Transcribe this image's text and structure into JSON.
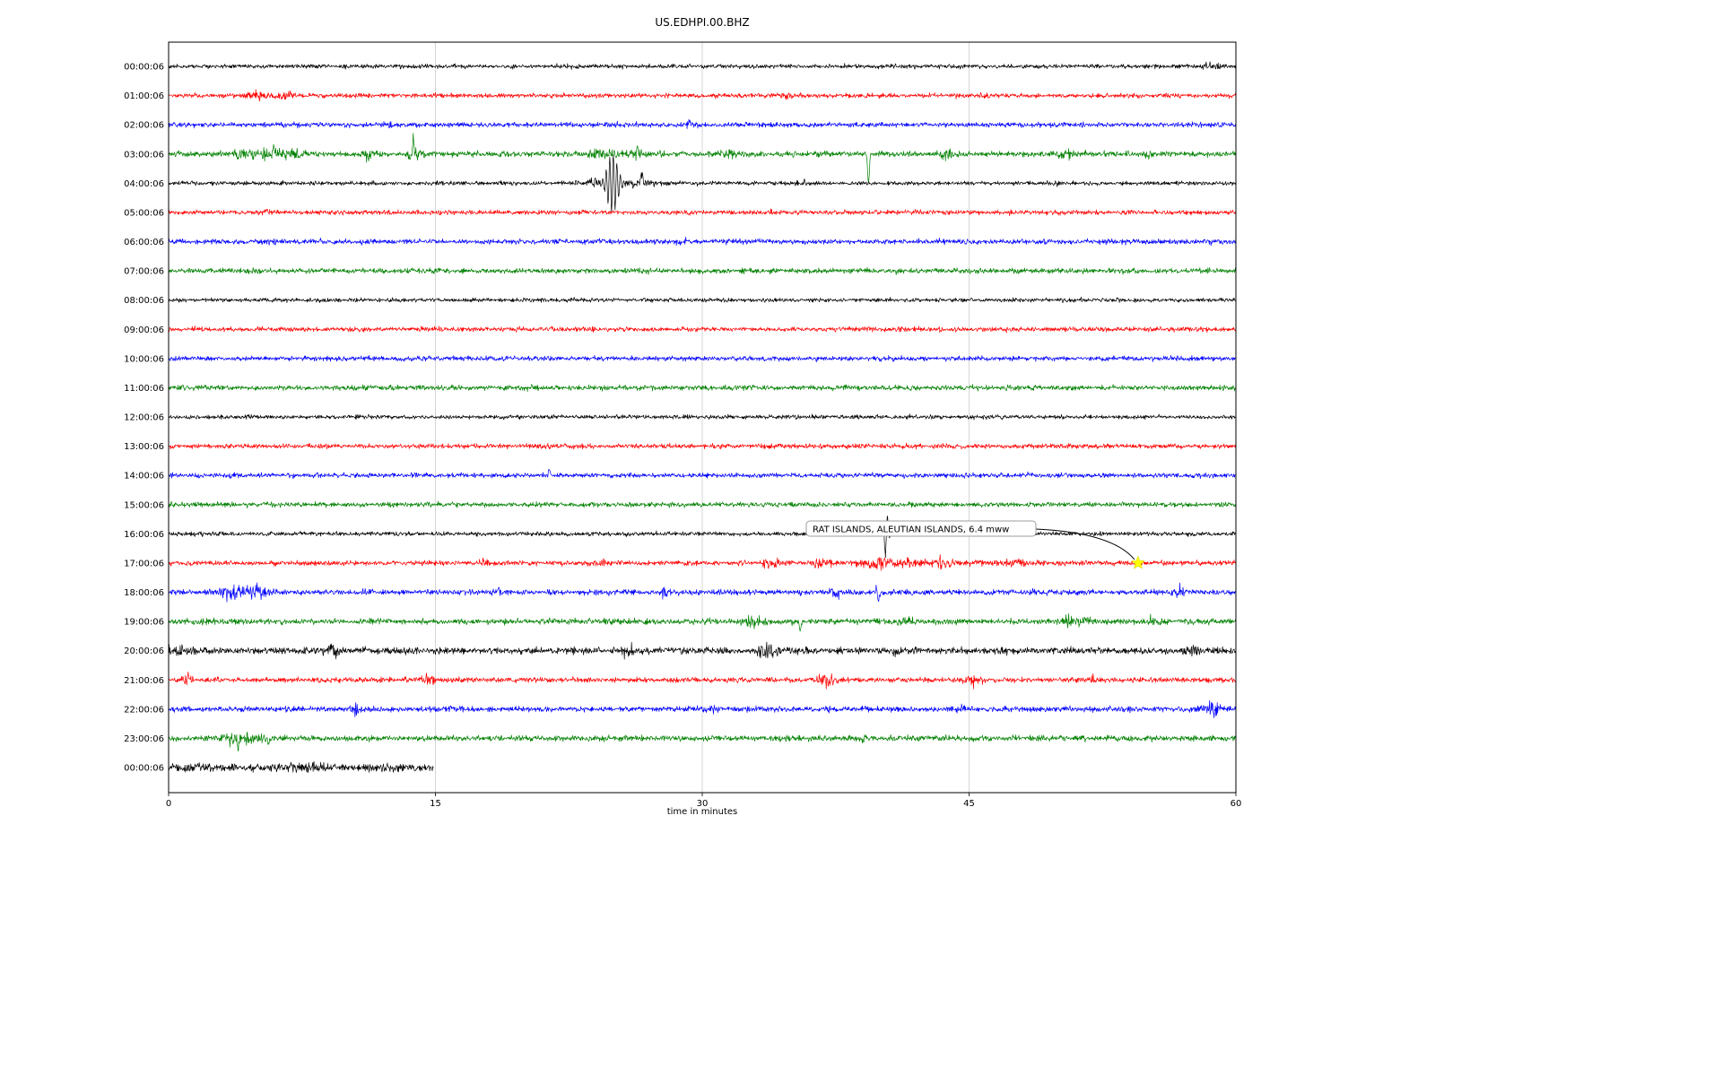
{
  "title": "US.EDHPI.00.BHZ",
  "chart_data": {
    "type": "line",
    "subtype": "helicorder-dayplot",
    "title": "US.EDHPI.00.BHZ",
    "xlabel": "time in minutes",
    "ylabel": "",
    "xlim": [
      0,
      60
    ],
    "x_ticks": [
      0,
      15,
      30,
      45,
      60
    ],
    "grid_x": [
      15,
      30,
      45
    ],
    "grid_color": "#cccccc",
    "trace_color_cycle": [
      "#000000",
      "#ff0000",
      "#0000ff",
      "#008000"
    ],
    "minutes_per_row": 60,
    "annotation": {
      "text": "RAT ISLANDS, ALEUTIAN ISLANDS, 6.4 mww",
      "marker_row": 17,
      "marker_x_min": 54.5,
      "marker_shape": "star",
      "marker_color": "#ffff00"
    },
    "rows": [
      {
        "label": "00:00:06",
        "color": "#000000",
        "amp": 1.1,
        "end": 60,
        "bursts": [
          {
            "x": 58.6,
            "w": 0.5,
            "a": 1.5
          }
        ],
        "spikes": []
      },
      {
        "label": "01:00:06",
        "color": "#ff0000",
        "amp": 1.2,
        "end": 60,
        "bursts": [
          {
            "x": 5.0,
            "w": 0.8,
            "a": 1.5
          },
          {
            "x": 6.6,
            "w": 0.4,
            "a": 1.8
          },
          {
            "x": 34.8,
            "w": 0.3,
            "a": 1.5
          }
        ],
        "spikes": []
      },
      {
        "label": "02:00:06",
        "color": "#0000ff",
        "amp": 1.3,
        "end": 60,
        "bursts": [
          {
            "x": 12.3,
            "w": 0.3,
            "a": 1.2
          },
          {
            "x": 29.2,
            "w": 0.3,
            "a": 1.0
          }
        ],
        "spikes": []
      },
      {
        "label": "03:00:06",
        "color": "#008000",
        "amp": 1.5,
        "end": 60,
        "bursts": [
          {
            "x": 4.2,
            "w": 0.5,
            "a": 2.4
          },
          {
            "x": 5.6,
            "w": 0.7,
            "a": 2.8
          },
          {
            "x": 7.0,
            "w": 0.5,
            "a": 2.0
          },
          {
            "x": 11.2,
            "w": 0.4,
            "a": 2.2
          },
          {
            "x": 13.8,
            "w": 0.5,
            "a": 2.4
          },
          {
            "x": 24.5,
            "w": 0.8,
            "a": 2.0
          },
          {
            "x": 26.3,
            "w": 0.4,
            "a": 2.4
          },
          {
            "x": 31.5,
            "w": 0.4,
            "a": 1.5
          },
          {
            "x": 43.8,
            "w": 0.4,
            "a": 2.0
          },
          {
            "x": 50.3,
            "w": 0.6,
            "a": 2.0
          },
          {
            "x": 55.0,
            "w": 0.3,
            "a": 1.5
          }
        ],
        "spikes": [
          {
            "x": 5.9,
            "a": 12,
            "w": 0.05,
            "f": 0
          },
          {
            "x": 13.75,
            "a": 14,
            "w": 0.05,
            "f": 0
          },
          {
            "x": 26.35,
            "a": 8,
            "w": 0.05,
            "f": 0
          },
          {
            "x": 39.35,
            "a": -33,
            "w": 0.07,
            "f": 0
          }
        ]
      },
      {
        "label": "04:00:06",
        "color": "#000000",
        "amp": 1.1,
        "end": 60,
        "bursts": [
          {
            "x": 23.8,
            "w": 0.6,
            "a": 2.0
          },
          {
            "x": 26.5,
            "w": 0.8,
            "a": 1.8
          },
          {
            "x": 35.8,
            "w": 0.3,
            "a": 1.5
          },
          {
            "x": 49.8,
            "w": 0.3,
            "a": 1.3
          }
        ],
        "spikes": [
          {
            "x": 24.95,
            "a": 33,
            "w": 0.4,
            "f": 5
          },
          {
            "x": 26.6,
            "a": 9,
            "w": 0.08,
            "f": 0
          }
        ]
      },
      {
        "label": "05:00:06",
        "color": "#ff0000",
        "amp": 1.2,
        "end": 60,
        "bursts": [
          {
            "x": 5.5,
            "w": 0.4,
            "a": 1.3
          }
        ],
        "spikes": []
      },
      {
        "label": "06:00:06",
        "color": "#0000ff",
        "amp": 1.35,
        "end": 60,
        "bursts": [
          {
            "x": 29.0,
            "w": 0.4,
            "a": 1.2
          }
        ],
        "spikes": []
      },
      {
        "label": "07:00:06",
        "color": "#008000",
        "amp": 1.35,
        "end": 60,
        "bursts": [],
        "spikes": []
      },
      {
        "label": "08:00:06",
        "color": "#000000",
        "amp": 1.05,
        "end": 60,
        "bursts": [],
        "spikes": []
      },
      {
        "label": "09:00:06",
        "color": "#ff0000",
        "amp": 1.25,
        "end": 60,
        "bursts": [],
        "spikes": []
      },
      {
        "label": "10:00:06",
        "color": "#0000ff",
        "amp": 1.25,
        "end": 60,
        "bursts": [],
        "spikes": []
      },
      {
        "label": "11:00:06",
        "color": "#008000",
        "amp": 1.35,
        "end": 60,
        "bursts": [],
        "spikes": []
      },
      {
        "label": "12:00:06",
        "color": "#000000",
        "amp": 1.05,
        "end": 60,
        "bursts": [],
        "spikes": []
      },
      {
        "label": "13:00:06",
        "color": "#ff0000",
        "amp": 1.25,
        "end": 60,
        "bursts": [],
        "spikes": []
      },
      {
        "label": "14:00:06",
        "color": "#0000ff",
        "amp": 1.25,
        "end": 60,
        "bursts": [],
        "spikes": [
          {
            "x": 21.4,
            "a": 7,
            "w": 0.05,
            "f": 0
          }
        ]
      },
      {
        "label": "15:00:06",
        "color": "#008000",
        "amp": 1.3,
        "end": 60,
        "bursts": [],
        "spikes": []
      },
      {
        "label": "16:00:06",
        "color": "#000000",
        "amp": 1.1,
        "end": 60,
        "bursts": [
          {
            "x": 40.3,
            "w": 0.25,
            "a": 2.0
          }
        ],
        "spikes": [
          {
            "x": 40.35,
            "a": 28,
            "w": 0.13,
            "f": 4
          }
        ]
      },
      {
        "label": "17:00:06",
        "color": "#ff0000",
        "amp": 1.3,
        "end": 60,
        "bursts": [
          {
            "x": 17.8,
            "w": 0.3,
            "a": 1.5
          },
          {
            "x": 24.3,
            "w": 0.3,
            "a": 1.5
          },
          {
            "x": 34.0,
            "w": 0.5,
            "a": 2.2
          },
          {
            "x": 36.8,
            "w": 0.5,
            "a": 2.2
          },
          {
            "x": 39.7,
            "w": 0.6,
            "a": 3.2
          },
          {
            "x": 41.5,
            "w": 1.5,
            "a": 1.2
          },
          {
            "x": 43.5,
            "w": 0.5,
            "a": 2.2
          },
          {
            "x": 47.0,
            "w": 2.0,
            "a": 0.8
          }
        ],
        "spikes": []
      },
      {
        "label": "18:00:06",
        "color": "#0000ff",
        "amp": 1.4,
        "end": 60,
        "bursts": [
          {
            "x": 3.2,
            "w": 0.5,
            "a": 2.6
          },
          {
            "x": 4.3,
            "w": 0.7,
            "a": 2.8
          },
          {
            "x": 5.3,
            "w": 0.4,
            "a": 2.0
          },
          {
            "x": 18.5,
            "w": 0.3,
            "a": 1.5
          },
          {
            "x": 28.0,
            "w": 0.4,
            "a": 1.5
          },
          {
            "x": 37.5,
            "w": 0.3,
            "a": 2.0
          },
          {
            "x": 48.5,
            "w": 0.3,
            "a": 1.5
          },
          {
            "x": 56.8,
            "w": 0.3,
            "a": 2.5
          }
        ],
        "spikes": [
          {
            "x": 39.8,
            "a": 6,
            "w": 0.06,
            "f": 0
          },
          {
            "x": 39.9,
            "a": -9,
            "w": 0.07,
            "f": 0
          }
        ]
      },
      {
        "label": "19:00:06",
        "color": "#008000",
        "amp": 1.55,
        "end": 60,
        "bursts": [
          {
            "x": 32.8,
            "w": 0.4,
            "a": 2.0
          },
          {
            "x": 41.5,
            "w": 0.4,
            "a": 1.8
          },
          {
            "x": 50.8,
            "w": 0.8,
            "a": 2.2
          },
          {
            "x": 55.2,
            "w": 0.3,
            "a": 1.5
          }
        ],
        "spikes": [
          {
            "x": 35.5,
            "a": -10,
            "w": 0.06,
            "f": 0
          }
        ]
      },
      {
        "label": "20:00:06",
        "color": "#000000",
        "amp": 1.75,
        "end": 60,
        "bursts": [
          {
            "x": 0.5,
            "w": 0.7,
            "a": 2.0
          },
          {
            "x": 9.2,
            "w": 0.4,
            "a": 2.2
          },
          {
            "x": 25.8,
            "w": 0.4,
            "a": 1.8
          },
          {
            "x": 33.8,
            "w": 0.6,
            "a": 2.8
          },
          {
            "x": 41.0,
            "w": 0.4,
            "a": 1.5
          },
          {
            "x": 46.8,
            "w": 0.4,
            "a": 1.8
          },
          {
            "x": 57.5,
            "w": 0.4,
            "a": 1.5
          }
        ],
        "spikes": []
      },
      {
        "label": "21:00:06",
        "color": "#ff0000",
        "amp": 1.35,
        "end": 60,
        "bursts": [
          {
            "x": 1.1,
            "w": 0.2,
            "a": 3.0
          },
          {
            "x": 14.5,
            "w": 0.4,
            "a": 2.0
          },
          {
            "x": 37.0,
            "w": 0.5,
            "a": 3.2
          },
          {
            "x": 45.3,
            "w": 0.4,
            "a": 2.5
          },
          {
            "x": 52.0,
            "w": 0.3,
            "a": 1.5
          }
        ],
        "spikes": []
      },
      {
        "label": "22:00:06",
        "color": "#0000ff",
        "amp": 1.45,
        "end": 60,
        "bursts": [
          {
            "x": 10.5,
            "w": 0.3,
            "a": 2.5
          },
          {
            "x": 30.5,
            "w": 0.3,
            "a": 1.5
          },
          {
            "x": 44.5,
            "w": 0.4,
            "a": 1.5
          },
          {
            "x": 58.7,
            "w": 0.4,
            "a": 3.5
          }
        ],
        "spikes": []
      },
      {
        "label": "23:00:06",
        "color": "#008000",
        "amp": 1.5,
        "end": 60,
        "bursts": [
          {
            "x": 3.5,
            "w": 0.5,
            "a": 2.6
          },
          {
            "x": 4.8,
            "w": 0.6,
            "a": 2.4
          },
          {
            "x": 39.0,
            "w": 0.3,
            "a": 1.3
          }
        ],
        "spikes": [
          {
            "x": 3.9,
            "a": -11,
            "w": 0.06,
            "f": 0
          },
          {
            "x": 5.6,
            "a": -8,
            "w": 0.05,
            "f": 0
          }
        ]
      },
      {
        "label": "00:00:06",
        "color": "#000000",
        "amp": 2.0,
        "end": 14.9,
        "bursts": [
          {
            "x": 1.0,
            "w": 0.5,
            "a": 1.2
          },
          {
            "x": 7.5,
            "w": 1.0,
            "a": 1.0
          }
        ],
        "spikes": []
      }
    ]
  }
}
